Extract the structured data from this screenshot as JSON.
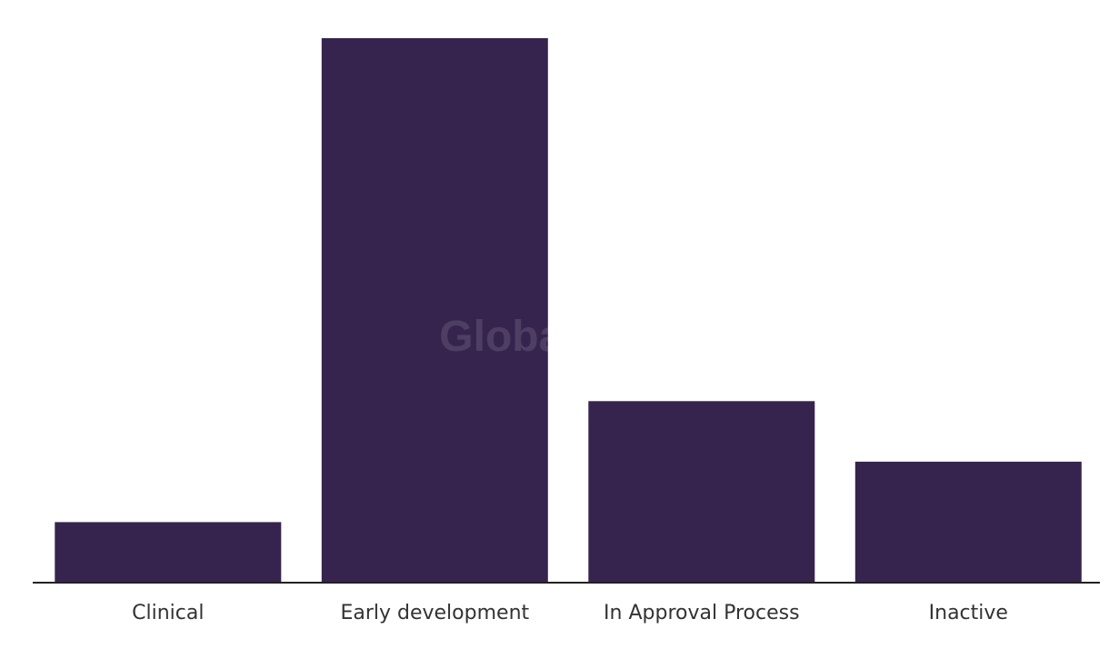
{
  "chart_data": {
    "type": "bar",
    "categories": [
      "Clinical",
      "Early development",
      "In Approval Process",
      "Inactive"
    ],
    "values": [
      1,
      9,
      3,
      2
    ],
    "ylim": [
      0,
      9
    ],
    "grid": false,
    "legend": "none",
    "bar_color": "#36244f",
    "axis_color": "#222222"
  },
  "watermark": "GlobalData"
}
